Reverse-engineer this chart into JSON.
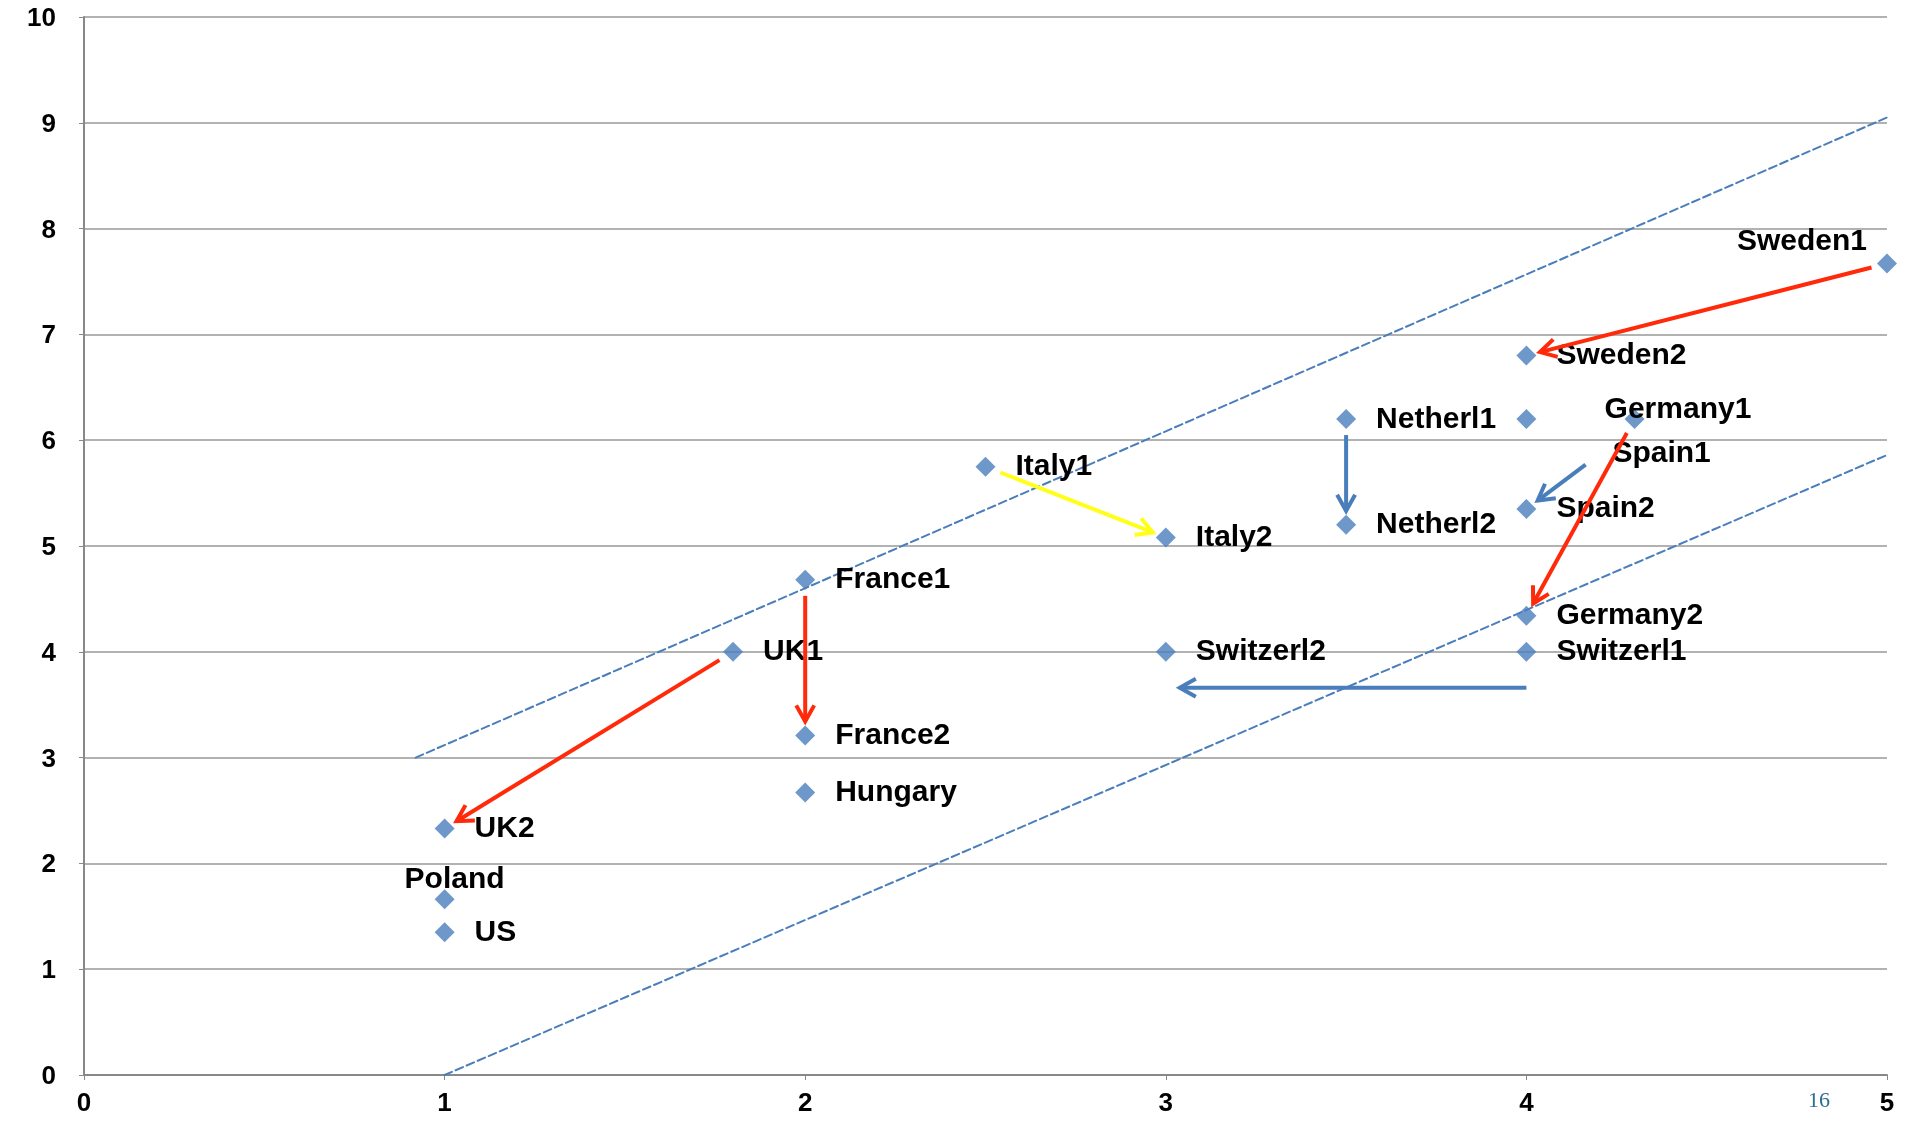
{
  "chart_data": {
    "type": "scatter",
    "marker": "diamond",
    "grid": "y",
    "xlim": [
      0,
      5
    ],
    "xticks": [
      0,
      1,
      2,
      3,
      4,
      5
    ],
    "ylim": [
      0,
      10
    ],
    "yticks": [
      0,
      1,
      2,
      3,
      4,
      5,
      6,
      7,
      8,
      9,
      10
    ],
    "series": [
      {
        "color": "#4a7ebb",
        "x": [
          5,
          4,
          3.5,
          4,
          4.3,
          4,
          3.5,
          2.5,
          3,
          2,
          2,
          2,
          1.8,
          1,
          1,
          1,
          3,
          4,
          4
        ],
        "values": [
          7.67,
          6.8,
          6.2,
          6.2,
          6.2,
          5.35,
          5.2,
          5.75,
          5.08,
          4.68,
          3.21,
          2.67,
          4,
          2.33,
          1.66,
          1.35,
          4,
          4,
          4.34
        ]
      },
      {
        "type": "line",
        "color": "#4a7ebb",
        "line_style": "dashed",
        "marker": "none",
        "x": [
          0.92,
          5
        ],
        "values": [
          3.0,
          9.05
        ]
      },
      {
        "type": "line",
        "color": "#4a7ebb",
        "line_style": "dashed",
        "marker": "none",
        "x": [
          1,
          5
        ],
        "values": [
          0,
          5.86
        ]
      }
    ],
    "annotations": [
      {
        "text": "Sweden1",
        "x": 5,
        "y": 7.67
      },
      {
        "text": "Sweden2",
        "x": 4,
        "y": 6.8
      },
      {
        "text": "Netherl1",
        "x": 3.5,
        "y": 6.2
      },
      {
        "text": "Spain1",
        "x": 4,
        "y": 6.2
      },
      {
        "text": "Germany1",
        "x": 4.3,
        "y": 6.2
      },
      {
        "text": "Spain2",
        "x": 4,
        "y": 5.35
      },
      {
        "text": "Netherl2",
        "x": 3.5,
        "y": 5.2
      },
      {
        "text": "Italy1",
        "x": 2.5,
        "y": 5.75
      },
      {
        "text": "Italy2",
        "x": 3,
        "y": 5.08
      },
      {
        "text": "France1",
        "x": 2,
        "y": 4.68
      },
      {
        "text": "France2",
        "x": 2,
        "y": 3.21
      },
      {
        "text": "Hungary",
        "x": 2,
        "y": 2.67
      },
      {
        "text": "UK1",
        "x": 1.8,
        "y": 4
      },
      {
        "text": "UK2",
        "x": 1,
        "y": 2.33
      },
      {
        "text": "Poland",
        "x": 1,
        "y": 1.66
      },
      {
        "text": "US",
        "x": 1,
        "y": 1.35
      },
      {
        "text": "Switzerl2",
        "x": 3,
        "y": 4
      },
      {
        "text": "Switzerl1",
        "x": 4,
        "y": 4
      },
      {
        "text": "Germany2",
        "x": 4,
        "y": 4.34
      },
      "16"
    ]
  }
}
